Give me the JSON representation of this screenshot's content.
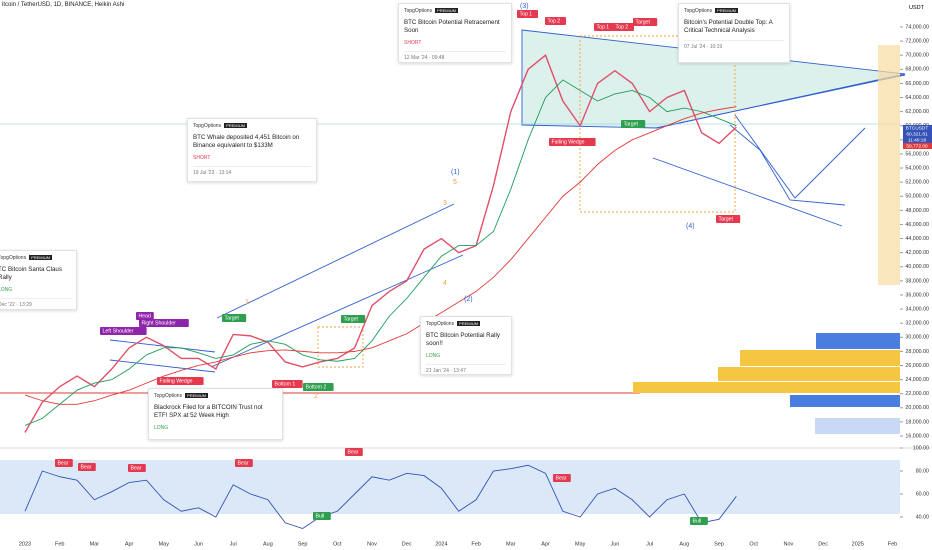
{
  "header": {
    "title": "itcoin / TetherUSD, 1D, BINANCE, Heikin Ashi",
    "currency": "USDT"
  },
  "price_tags": [
    "BTCUSDT",
    "60,321.61",
    "11:40:18",
    "59,772.00"
  ],
  "chart_data": [
    {
      "type": "line",
      "categories": [
        "2023",
        null,
        "Feb",
        null,
        "Mar",
        null,
        "Apr",
        null,
        "May",
        null,
        "Jun",
        null,
        "Jul",
        null,
        "Aug",
        null,
        "Sep",
        null,
        "Oct",
        null,
        "Nov",
        null,
        "Dec",
        null,
        "2024",
        null,
        "Feb",
        null,
        "Mar",
        null,
        "Apr",
        null,
        "May",
        null,
        "Jun",
        null,
        "Jul",
        null,
        "Aug",
        null,
        "Sep",
        null,
        "Oct",
        null,
        "Nov",
        null,
        "Dec",
        null,
        "2025",
        null,
        "Feb",
        null
      ],
      "series": [
        {
          "color": "#e0506a",
          "values": [
            16500,
            20800,
            23000,
            24500,
            23000,
            25500,
            28500,
            30000,
            28800,
            27000,
            27000,
            25500,
            30400,
            30200,
            29300,
            26500,
            25800,
            26500,
            27000,
            28500,
            34500,
            36500,
            38000,
            42500,
            44000,
            42000,
            43000,
            51500,
            62000,
            68000,
            70000,
            63500,
            60000,
            66000,
            67800,
            66000,
            62000,
            64000,
            65000,
            59000,
            57500,
            59800,
            null,
            null,
            null,
            null,
            null,
            null,
            null,
            null,
            null,
            null
          ]
        },
        {
          "color": "#1f9e5a",
          "values": [
            17500,
            18500,
            20500,
            22500,
            23500,
            24000,
            25500,
            27500,
            28500,
            28500,
            27800,
            27000,
            27500,
            29000,
            29500,
            29000,
            27500,
            26800,
            26600,
            27000,
            29500,
            33000,
            35500,
            38500,
            41500,
            43000,
            43000,
            45000,
            51000,
            58000,
            64000,
            66500,
            65000,
            63500,
            64500,
            65000,
            64000,
            62000,
            62500,
            62000,
            61000,
            60000,
            null,
            null,
            null,
            null,
            null,
            null,
            null,
            null,
            null,
            null
          ]
        },
        {
          "color": "#e23a3a",
          "values": [
            21800,
            21000,
            20500,
            20500,
            21000,
            21800,
            22500,
            23500,
            24500,
            25300,
            26000,
            26500,
            27200,
            27800,
            28100,
            28200,
            28000,
            27800,
            27800,
            28000,
            28500,
            29500,
            30500,
            32000,
            33500,
            35000,
            36500,
            38500,
            41000,
            44000,
            47000,
            50000,
            52000,
            54500,
            56500,
            58000,
            59000,
            60000,
            61000,
            61800,
            62300,
            62700,
            null,
            null,
            null,
            null,
            null,
            null,
            null,
            null,
            null,
            null
          ]
        }
      ],
      "ylim": [
        16000,
        74000
      ],
      "yticks": [
        {
          "value": 16000,
          "label": "16,000.00"
        },
        {
          "value": 18000,
          "label": "18,000.00"
        },
        {
          "value": 20000,
          "label": "20,000.00"
        },
        {
          "value": 22000,
          "label": "22,000.00"
        },
        {
          "value": 24000,
          "label": "24,000.00"
        },
        {
          "value": 26000,
          "label": "26,000.00"
        },
        {
          "value": 28000,
          "label": "28,000.00"
        },
        {
          "value": 30000,
          "label": "30,000.00"
        },
        {
          "value": 32000,
          "label": "32,000.00"
        },
        {
          "value": 34000,
          "label": "34,000.00"
        },
        {
          "value": 36000,
          "label": "36,000.00"
        },
        {
          "value": 38000,
          "label": "38,000.00"
        },
        {
          "value": 40000,
          "label": "40,000.00"
        },
        {
          "value": 42000,
          "label": "42,000.00"
        },
        {
          "value": 44000,
          "label": "44,000.00"
        },
        {
          "value": 46000,
          "label": "46,000.00"
        },
        {
          "value": 48000,
          "label": "48,000.00"
        },
        {
          "value": 50000,
          "label": "50,000.00"
        },
        {
          "value": 52000,
          "label": "52,000.00"
        },
        {
          "value": 54000,
          "label": "54,000.00"
        },
        {
          "value": 56000,
          "label": "56,000.00"
        },
        {
          "value": 58000,
          "label": "58,000.00"
        },
        {
          "value": 60000,
          "label": "60,000.00"
        },
        {
          "value": 62000,
          "label": "62,000.00"
        },
        {
          "value": 64000,
          "label": "64,000.00"
        },
        {
          "value": 66000,
          "label": "66,000.00"
        },
        {
          "value": 68000,
          "label": "68,000.00"
        },
        {
          "value": 70000,
          "label": "70,000.00"
        },
        {
          "value": 72000,
          "label": "72,000.00"
        },
        {
          "value": 74000,
          "label": "74,000.00"
        }
      ]
    },
    {
      "type": "line",
      "color": "#3552b8",
      "values": [
        45,
        80,
        75,
        72,
        55,
        62,
        70,
        72,
        55,
        45,
        48,
        40,
        68,
        60,
        55,
        35,
        30,
        40,
        45,
        60,
        75,
        72,
        78,
        76,
        65,
        45,
        55,
        80,
        82,
        85,
        78,
        45,
        40,
        60,
        65,
        55,
        40,
        55,
        60,
        35,
        38,
        58,
        null,
        null,
        null,
        null,
        null,
        null,
        null,
        null,
        null,
        null
      ],
      "ylim": [
        20,
        100
      ],
      "yticks": [
        {
          "value": 100,
          "label": "100.00"
        },
        {
          "value": 80,
          "label": "80.00"
        },
        {
          "value": 60,
          "label": "60.00"
        },
        {
          "value": 40,
          "label": "40.00"
        }
      ]
    }
  ],
  "annotations": [
    "Left Shoulder",
    "Head",
    "Right Shoulder",
    "Falling Wedge",
    "Target",
    "Bottom 1",
    "Bottom 2",
    "Target",
    "1",
    "2",
    "3",
    "4",
    "5",
    "(1)",
    "(2)",
    "(3)",
    "(4)",
    "Top 1",
    "Top 2",
    "Falling Wedge",
    "Target",
    "Top 1",
    "Top 2",
    "Target",
    "Target",
    "Bull",
    "Bear",
    "Bear",
    "Bear",
    "Bear",
    "Bear",
    "Bull",
    "Bear"
  ],
  "ideas": [
    {
      "author": "TopgOptions",
      "badge": "PREMIUM",
      "title": "TC Bitcoin Santa Claus Rally",
      "signal": "LONG",
      "date": "Dec '22 · 13:29"
    },
    {
      "author": "TopgOptions",
      "badge": "PREMIUM",
      "title": "BTC Whale deposited 4,451 Bitcoin on Binance equivalent to $133M",
      "signal": "SHORT",
      "date": "19 Jul '23 · 13:14"
    },
    {
      "author": "TopgOptions",
      "badge": "PREMIUM",
      "title": "BTC Bitcoin Potential Retracement Soon",
      "signal": "SHORT",
      "date": "12 Mar '24 · 09:48"
    },
    {
      "author": "TopgOptions",
      "badge": "PREMIUM",
      "title": "Bitcoin's Potential Double Top: A Critical Technical Analysis",
      "date": "07 Jul '24 · 10:19"
    },
    {
      "author": "TopgOptions",
      "badge": "PREMIUM",
      "title": "BTC Bitcoin Potential Rally soon!!",
      "signal": "LONG",
      "date": "21 Jan '24 · 13:47"
    },
    {
      "author": "TopgOptions",
      "badge": "PREMIUM",
      "title": "Blackrock Filed for a BITCOIN Trust not ETF! SPX at 52 Week High",
      "signal": "LONG"
    }
  ]
}
